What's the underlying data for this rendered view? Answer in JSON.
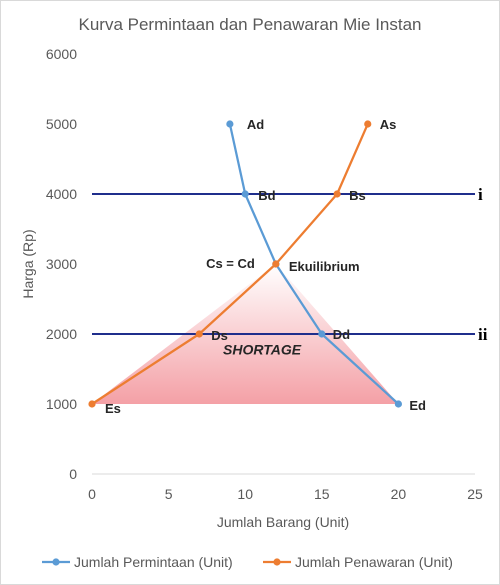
{
  "chart_data": {
    "type": "line",
    "title": "Kurva Permintaan dan Penawaran Mie Instan",
    "xlabel": "Jumlah Barang (Unit)",
    "ylabel": "Harga (Rp)",
    "xlim": [
      0,
      25
    ],
    "ylim": [
      0,
      6000
    ],
    "x_ticks": [
      "0",
      "5",
      "10",
      "15",
      "20",
      "25"
    ],
    "y_ticks": [
      "0",
      "1000",
      "2000",
      "3000",
      "4000",
      "5000",
      "6000"
    ],
    "grid": false,
    "legend_position": "bottom",
    "series": [
      {
        "name": "Jumlah Permintaan (Unit)",
        "color": "#5b9bd5",
        "points": [
          {
            "x": 9,
            "y": 5000,
            "label": "Ad"
          },
          {
            "x": 10,
            "y": 4000,
            "label": "Bd"
          },
          {
            "x": 12,
            "y": 3000,
            "label": ""
          },
          {
            "x": 15,
            "y": 2000,
            "label": "Dd"
          },
          {
            "x": 20,
            "y": 1000,
            "label": "Ed"
          }
        ]
      },
      {
        "name": "Jumlah Penawaran (Unit)",
        "color": "#ed7d31",
        "points": [
          {
            "x": 0,
            "y": 1000,
            "label": "Es"
          },
          {
            "x": 7,
            "y": 2000,
            "label": "Ds"
          },
          {
            "x": 12,
            "y": 3000,
            "label": ""
          },
          {
            "x": 16,
            "y": 4000,
            "label": "Bs"
          },
          {
            "x": 18,
            "y": 5000,
            "label": "As"
          }
        ]
      }
    ],
    "equilibrium": {
      "x": 12,
      "y": 3000,
      "label_left": "Cs = Cd",
      "label_right": "Ekuilibrium"
    },
    "reference_lines": [
      {
        "y": 4000,
        "label": "i",
        "color": "#1f2e8c"
      },
      {
        "y": 2000,
        "label": "ii",
        "color": "#1f2e8c"
      }
    ],
    "shaded_region": {
      "label": "SHORTAGE",
      "vertices": [
        [
          0,
          1000
        ],
        [
          12,
          3000
        ],
        [
          20,
          1000
        ]
      ],
      "color_top": "#ffffff",
      "color_bottom": "#f4a0a6"
    }
  }
}
